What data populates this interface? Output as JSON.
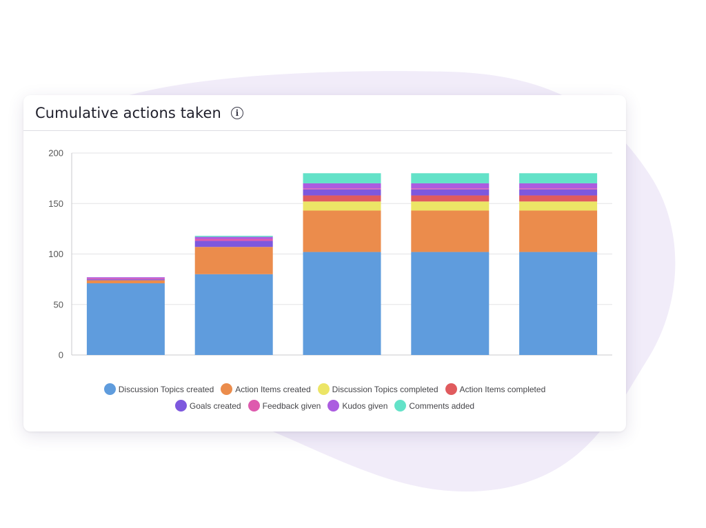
{
  "card": {
    "title": "Cumulative actions taken",
    "info_icon": "info-icon"
  },
  "colors": {
    "background_blob": "#f1ecf9"
  },
  "chart_data": {
    "type": "bar",
    "stacked": true,
    "categories": [
      "",
      "",
      "",
      "",
      ""
    ],
    "ylim": [
      0,
      200
    ],
    "yticks": [
      0,
      50,
      100,
      150,
      200
    ],
    "grid": true,
    "legend": "bottom",
    "title": "",
    "xlabel": "",
    "ylabel": "",
    "series": [
      {
        "name": "Discussion Topics created",
        "color": "#5f9cdd",
        "values": [
          71,
          80,
          102,
          102,
          102
        ]
      },
      {
        "name": "Action Items created",
        "color": "#eb8c4c",
        "values": [
          3,
          27,
          41,
          41,
          41
        ]
      },
      {
        "name": "Discussion Topics completed",
        "color": "#ece566",
        "values": [
          0,
          0,
          9,
          9,
          9
        ]
      },
      {
        "name": "Action Items completed",
        "color": "#e05b5e",
        "values": [
          0,
          0,
          6,
          6,
          6
        ]
      },
      {
        "name": "Goals created",
        "color": "#7d58de",
        "values": [
          1,
          6,
          6,
          6,
          6
        ]
      },
      {
        "name": "Feedback given",
        "color": "#de5aae",
        "values": [
          1,
          2,
          1,
          1,
          1
        ]
      },
      {
        "name": "Kudos given",
        "color": "#ab5ce0",
        "values": [
          1,
          2,
          5,
          5,
          5
        ]
      },
      {
        "name": "Comments added",
        "color": "#63e2c8",
        "values": [
          0,
          1,
          10,
          10,
          10
        ]
      }
    ]
  }
}
